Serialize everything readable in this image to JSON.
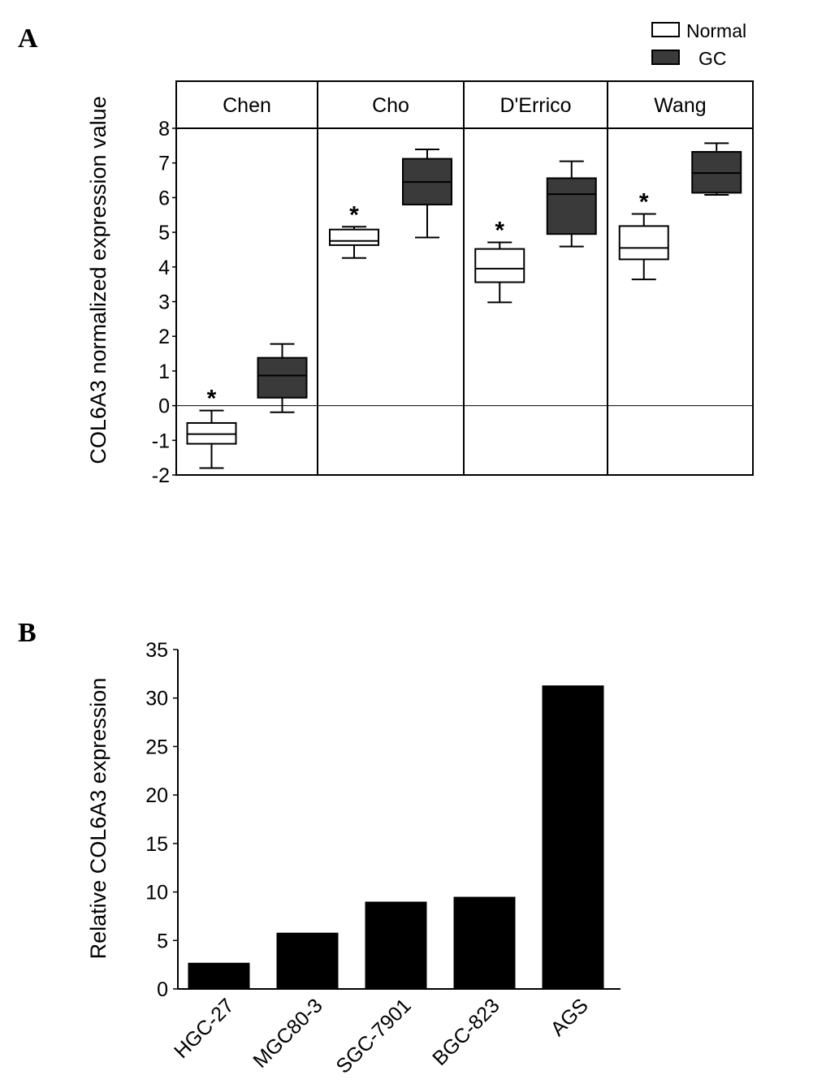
{
  "chart_data": [
    {
      "type": "box",
      "panel_label": "A",
      "ylabel": "COL6A3 normalized expression value",
      "ylim": [
        -2,
        8
      ],
      "yticks": [
        "-2",
        "-1",
        "0",
        "1",
        "2",
        "3",
        "4",
        "5",
        "6",
        "7",
        "8"
      ],
      "legend": {
        "placement": "top-right",
        "entries": [
          {
            "name": "Normal",
            "color": "#ffffff"
          },
          {
            "name": "GC",
            "color": "#3a3a3a"
          }
        ]
      },
      "significance_marker": "*",
      "datasets": [
        {
          "name": "Chen",
          "normal": {
            "min": -1.8,
            "q1": -1.1,
            "median": -0.82,
            "q3": -0.5,
            "max": -0.14
          },
          "gc": {
            "min": -0.19,
            "q1": 0.23,
            "median": 0.87,
            "q3": 1.38,
            "max": 1.78
          }
        },
        {
          "name": "Cho",
          "normal": {
            "min": 4.26,
            "q1": 4.63,
            "median": 4.75,
            "q3": 5.08,
            "max": 5.16
          },
          "gc": {
            "min": 4.85,
            "q1": 5.8,
            "median": 6.45,
            "q3": 7.12,
            "max": 7.39
          }
        },
        {
          "name": "D'Errico",
          "normal": {
            "min": 2.98,
            "q1": 3.56,
            "median": 3.95,
            "q3": 4.52,
            "max": 4.71
          },
          "gc": {
            "min": 4.59,
            "q1": 4.95,
            "median": 6.1,
            "q3": 6.56,
            "max": 7.05
          }
        },
        {
          "name": "Wang",
          "normal": {
            "min": 3.64,
            "q1": 4.22,
            "median": 4.55,
            "q3": 5.18,
            "max": 5.53
          },
          "gc": {
            "min": 6.08,
            "q1": 6.14,
            "median": 6.71,
            "q3": 7.32,
            "max": 7.57
          }
        }
      ]
    },
    {
      "type": "bar",
      "panel_label": "B",
      "ylabel": "Relative COL6A3 expression",
      "xlabel": "",
      "ylim": [
        0,
        35
      ],
      "yticks": [
        "0",
        "5",
        "10",
        "15",
        "20",
        "25",
        "30",
        "35"
      ],
      "categories": [
        "HGC-27",
        "MGC80-3",
        "SGC-7901",
        "BGC-823",
        "AGS"
      ],
      "values": [
        2.7,
        5.8,
        9.0,
        9.5,
        31.3
      ],
      "bar_color": "#000000"
    }
  ]
}
